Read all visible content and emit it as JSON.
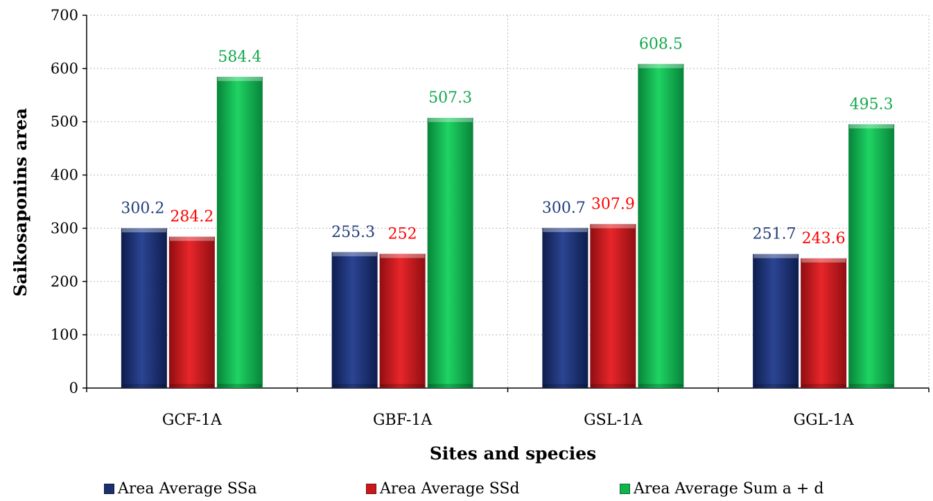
{
  "chart_data": {
    "type": "bar",
    "categories": [
      "GCF-1A",
      "GBF-1A",
      "GSL-1A",
      "GGL-1A"
    ],
    "series": [
      {
        "name": "Area Average SSa",
        "values": [
          300.2,
          255.3,
          300.7,
          251.7
        ],
        "color": "#1b2f6e",
        "label_color": "#1f3c7a"
      },
      {
        "name": "Area Average SSd",
        "values": [
          284.2,
          252,
          307.9,
          243.6
        ],
        "color": "#c8181c",
        "label_color": "#ff0000"
      },
      {
        "name": "Area Average Sum a + d",
        "values": [
          584.4,
          507.3,
          608.5,
          495.3
        ],
        "color": "#0fb54c",
        "label_color": "#12a84a"
      }
    ],
    "data_labels": [
      [
        "300.2",
        "255.3",
        "300.7",
        "251.7"
      ],
      [
        "284.2",
        "252",
        "307.9",
        "243.6"
      ],
      [
        "584.4",
        "507.3",
        "608.5",
        "495.3"
      ]
    ],
    "xlabel": "Sites and species",
    "ylabel": "Saikosaponins area",
    "ylim": [
      0,
      700
    ],
    "yticks": [
      "0",
      "100",
      "200",
      "300",
      "400",
      "500",
      "600",
      "700"
    ],
    "grid": true,
    "legend_position": "bottom"
  }
}
